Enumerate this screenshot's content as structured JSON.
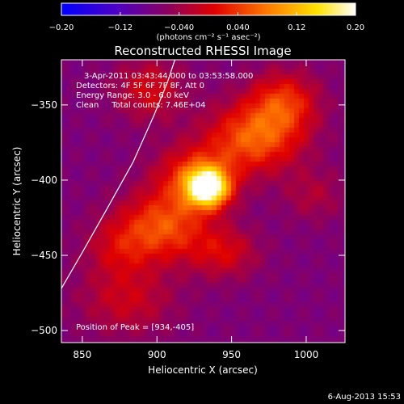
{
  "chart_data": {
    "type": "heatmap",
    "title": "Reconstructed RHESSI Image",
    "xlabel": "Heliocentric X (arcsec)",
    "ylabel": "Heliocentric Y (arcsec)",
    "xlim": [
      836,
      1026
    ],
    "ylim": [
      -508,
      -320
    ],
    "x_ticks": [
      850,
      900,
      950,
      1000
    ],
    "y_ticks": [
      -350,
      -400,
      -450,
      -500
    ],
    "colorbar": {
      "range": [
        -0.2,
        0.2
      ],
      "tick_values": [
        -0.2,
        -0.12,
        -0.04,
        0.04,
        0.12,
        0.2
      ],
      "tick_labels": [
        "−0.20",
        "−0.12",
        "−0.040",
        "0.040",
        "0.12",
        "0.20"
      ],
      "units_label": "(photons cm⁻² s⁻¹ asec⁻²)"
    },
    "annotations": [
      "3-Apr-2011 03:43:44.000 to 03:53:58.000",
      "Detectors: 4F 5F 6F 7F 8F, Att 0",
      "Energy Range: 3.0 - 6.0 keV",
      "Clean     Total counts: 7.46E+04",
      "Position of Peak = [934,-405]"
    ],
    "peak": {
      "x": 934,
      "y": -405
    },
    "limb_curve": [
      [
        836,
        -472
      ],
      [
        850,
        -448
      ],
      [
        866,
        -420
      ],
      [
        884,
        -388
      ],
      [
        898,
        -357
      ],
      [
        907,
        -335
      ],
      [
        912,
        -320
      ]
    ],
    "sources": [
      {
        "x": 934,
        "y": -405,
        "amp": 0.26,
        "sx": 10,
        "sy": 9
      },
      {
        "x": 925,
        "y": -397,
        "amp": 0.1,
        "sx": 18,
        "sy": 14
      },
      {
        "x": 965,
        "y": -372,
        "amp": 0.13,
        "sx": 22,
        "sy": 16
      },
      {
        "x": 985,
        "y": -348,
        "amp": 0.1,
        "sx": 16,
        "sy": 14
      },
      {
        "x": 905,
        "y": -430,
        "amp": 0.12,
        "sx": 20,
        "sy": 16
      },
      {
        "x": 875,
        "y": -445,
        "amp": 0.06,
        "sx": 16,
        "sy": 14
      },
      {
        "x": 945,
        "y": -448,
        "amp": 0.07,
        "sx": 16,
        "sy": 12
      },
      {
        "x": 895,
        "y": -340,
        "amp": 0.07,
        "sx": 16,
        "sy": 14
      },
      {
        "x": 880,
        "y": -480,
        "amp": 0.06,
        "sx": 22,
        "sy": 16
      },
      {
        "x": 1005,
        "y": -410,
        "amp": 0.04,
        "sx": 14,
        "sy": 12
      }
    ],
    "background_level": -0.07,
    "footer_date": "6-Aug-2013 15:53"
  }
}
